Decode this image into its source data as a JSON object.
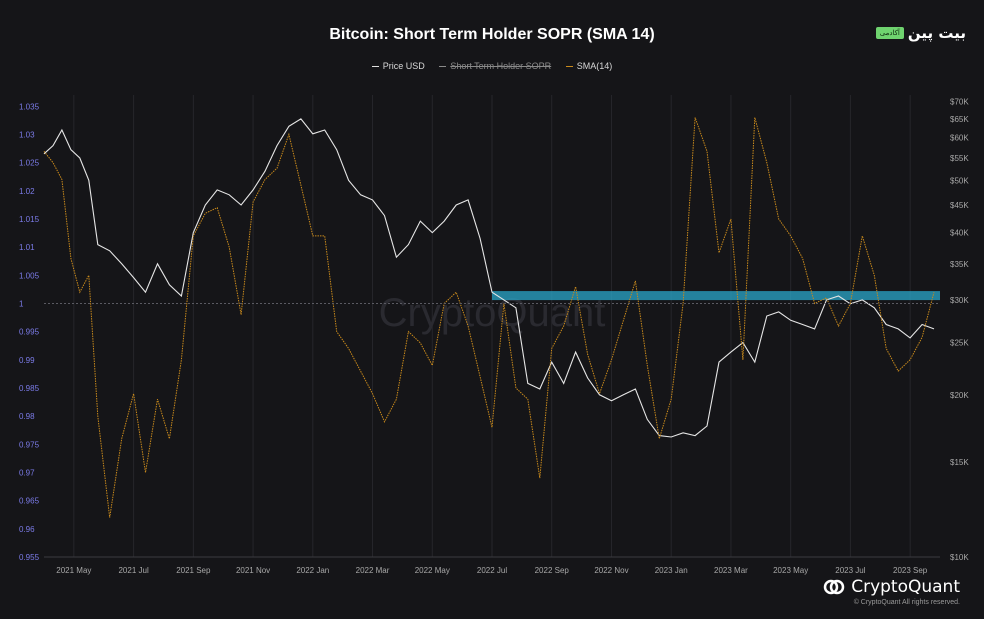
{
  "brand": {
    "badge_tag": "آکادمی",
    "badge_name": "بیت پین",
    "footer_logo": "CryptoQuant",
    "copyright": "© CryptoQuant All rights reserved.",
    "watermark": "CryptoQuant"
  },
  "chart_data": {
    "type": "line",
    "title": "Bitcoin: Short Term Holder SOPR (SMA 14)",
    "legend": [
      {
        "name": "Price USD",
        "color": "#e0e0e0",
        "visible": true
      },
      {
        "name": "Short Term Holder SOPR",
        "color": "#8a8a8a",
        "visible": false
      },
      {
        "name": "SMA(14)",
        "color": "#c98a1c",
        "visible": true
      }
    ],
    "legend_position": "top-center",
    "x_ticks": [
      "2021 May",
      "2021 Jul",
      "2021 Sep",
      "2021 Nov",
      "2022 Jan",
      "2022 Mar",
      "2022 May",
      "2022 Jul",
      "2022 Sep",
      "2022 Nov",
      "2023 Jan",
      "2023 Mar",
      "2023 May",
      "2023 Jul",
      "2023 Sep"
    ],
    "y_left": {
      "ticks": [
        "1.035",
        "1.03",
        "1.025",
        "1.02",
        "1.015",
        "1.01",
        "1.005",
        "1",
        "0.995",
        "0.99",
        "0.985",
        "0.98",
        "0.975",
        "0.97",
        "0.965",
        "0.96",
        "0.955"
      ],
      "range": [
        0.955,
        1.037
      ],
      "color": "#7b7be8"
    },
    "y_right": {
      "ticks": [
        "$70K",
        "$65K",
        "$60K",
        "$55K",
        "$50K",
        "$45K",
        "$40K",
        "$35K",
        "$30K",
        "$25K",
        "$20K",
        "$15K",
        "$10K"
      ],
      "scale": "log",
      "range": [
        10000,
        72000
      ]
    },
    "reference_line": {
      "y": 1
    },
    "highlight_band": {
      "x_start": "2022 Jul",
      "x_end": "2023 Sep",
      "y_min": 1.0006,
      "y_max": 1.0022,
      "color": "#2aa7c9"
    },
    "x_range": [
      0,
      30
    ],
    "price_series": {
      "name": "Price USD",
      "x": [
        0,
        0.3,
        0.6,
        0.9,
        1.2,
        1.5,
        1.8,
        2.2,
        2.6,
        3.0,
        3.4,
        3.8,
        4.2,
        4.6,
        5.0,
        5.4,
        5.8,
        6.2,
        6.6,
        7.0,
        7.4,
        7.8,
        8.2,
        8.6,
        9.0,
        9.4,
        9.8,
        10.2,
        10.6,
        11.0,
        11.4,
        11.8,
        12.2,
        12.6,
        13.0,
        13.4,
        13.8,
        14.2,
        14.6,
        15.0,
        15.4,
        15.8,
        16.2,
        16.6,
        17.0,
        17.4,
        17.8,
        18.2,
        18.6,
        19.0,
        19.4,
        19.8,
        20.2,
        20.6,
        21.0,
        21.4,
        21.8,
        22.2,
        22.6,
        23.0,
        23.4,
        23.8,
        24.2,
        24.6,
        25.0,
        25.4,
        25.8,
        26.2,
        26.6,
        27.0,
        27.4,
        27.8,
        28.2,
        28.6,
        29.0,
        29.4,
        29.8
      ],
      "y": [
        56000,
        58000,
        62000,
        57000,
        55000,
        50000,
        38000,
        37000,
        35000,
        33000,
        31000,
        35000,
        32000,
        30500,
        40000,
        45000,
        48000,
        47000,
        45000,
        48000,
        52000,
        58000,
        63000,
        65000,
        61000,
        62000,
        57000,
        50000,
        47000,
        46000,
        43000,
        36000,
        38000,
        42000,
        40000,
        42000,
        45000,
        46000,
        39000,
        31000,
        30000,
        29000,
        21000,
        20500,
        23000,
        21000,
        24000,
        21500,
        20000,
        19500,
        20000,
        20500,
        18000,
        16800,
        16700,
        17000,
        16800,
        17500,
        23000,
        24000,
        25000,
        23000,
        28000,
        28500,
        27500,
        27000,
        26500,
        30000,
        30500,
        29500,
        30000,
        29000,
        27000,
        26500,
        25500,
        27000,
        26500
      ]
    },
    "sma_series": {
      "name": "SMA(14)",
      "x": [
        0,
        0.3,
        0.6,
        0.9,
        1.2,
        1.5,
        1.8,
        2.2,
        2.6,
        3.0,
        3.4,
        3.8,
        4.2,
        4.6,
        5.0,
        5.4,
        5.8,
        6.2,
        6.6,
        7.0,
        7.4,
        7.8,
        8.2,
        8.6,
        9.0,
        9.4,
        9.8,
        10.2,
        10.6,
        11.0,
        11.4,
        11.8,
        12.2,
        12.6,
        13.0,
        13.4,
        13.8,
        14.2,
        14.6,
        15.0,
        15.4,
        15.8,
        16.2,
        16.6,
        17.0,
        17.4,
        17.8,
        18.2,
        18.6,
        19.0,
        19.4,
        19.8,
        20.2,
        20.6,
        21.0,
        21.4,
        21.8,
        22.2,
        22.6,
        23.0,
        23.4,
        23.8,
        24.2,
        24.6,
        25.0,
        25.4,
        25.8,
        26.2,
        26.6,
        27.0,
        27.4,
        27.8,
        28.2,
        28.6,
        29.0,
        29.4,
        29.8
      ],
      "y": [
        1.027,
        1.025,
        1.022,
        1.008,
        1.002,
        1.005,
        0.98,
        0.962,
        0.976,
        0.984,
        0.97,
        0.983,
        0.976,
        0.99,
        1.012,
        1.016,
        1.017,
        1.01,
        0.998,
        1.018,
        1.022,
        1.024,
        1.03,
        1.021,
        1.012,
        1.012,
        0.995,
        0.992,
        0.988,
        0.984,
        0.979,
        0.983,
        0.995,
        0.993,
        0.989,
        1.0,
        1.002,
        0.996,
        0.987,
        0.978,
        1.0,
        0.985,
        0.983,
        0.969,
        0.992,
        0.996,
        1.003,
        0.991,
        0.984,
        0.99,
        0.997,
        1.004,
        0.989,
        0.976,
        0.983,
        1.0,
        1.033,
        1.027,
        1.009,
        1.015,
        0.99,
        1.033,
        1.025,
        1.015,
        1.012,
        1.008,
        1.0,
        1.001,
        0.996,
        1.0,
        1.012,
        1.005,
        0.992,
        0.988,
        0.99,
        0.994,
        1.002
      ]
    }
  }
}
